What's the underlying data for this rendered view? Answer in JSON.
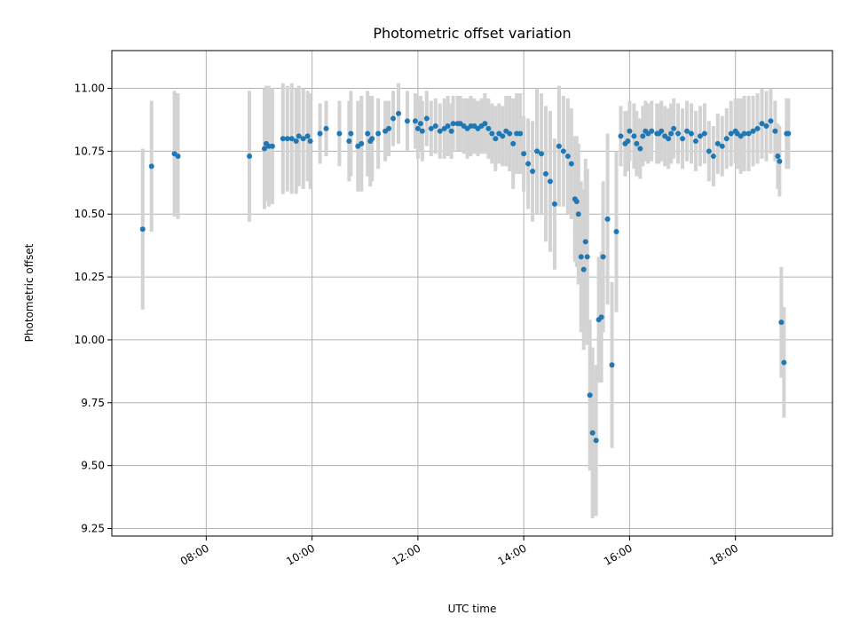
{
  "chart_data": {
    "type": "scatter",
    "title": "Photometric offset variation",
    "xlabel": "UTC time",
    "ylabel": "Photometric offset",
    "xlim": [
      "06:13",
      "19:50"
    ],
    "ylim": [
      9.22,
      11.15
    ],
    "x_ticks": [
      "08:00",
      "10:00",
      "12:00",
      "14:00",
      "16:00",
      "18:00"
    ],
    "y_ticks": [
      "9.25",
      "9.50",
      "9.75",
      "10.00",
      "10.25",
      "10.50",
      "10.75",
      "11.00"
    ],
    "grid": true,
    "colors": {
      "points": "#1f77b4",
      "errorbars": "#d3d3d3",
      "grid": "#b0b0b0"
    },
    "series": [
      {
        "x": [
          "06:48",
          "06:58",
          "07:24",
          "07:28",
          "08:49",
          "09:06",
          "09:08",
          "09:11",
          "09:15",
          "09:27",
          "09:32",
          "09:37",
          "09:42",
          "09:45",
          "09:50",
          "09:55",
          "09:58",
          "10:09",
          "10:16",
          "10:31",
          "10:42",
          "10:44",
          "10:52",
          "10:56",
          "11:03",
          "11:06",
          "11:08",
          "11:15",
          "11:23",
          "11:27",
          "11:32",
          "11:38",
          "11:48",
          "11:57",
          "12:00",
          "12:03",
          "12:05",
          "12:10",
          "12:15",
          "12:20",
          "12:25",
          "12:30",
          "12:34",
          "12:38",
          "12:40",
          "12:45",
          "12:48",
          "12:52",
          "12:56",
          "13:00",
          "13:04",
          "13:08",
          "13:12",
          "13:16",
          "13:20",
          "13:24",
          "13:28",
          "13:32",
          "13:36",
          "13:40",
          "13:44",
          "13:48",
          "13:52",
          "13:56",
          "14:00",
          "14:05",
          "14:10",
          "14:15",
          "14:20",
          "14:25",
          "14:30",
          "14:35",
          "14:40",
          "14:45",
          "14:50",
          "14:54",
          "14:58",
          "15:00",
          "15:02",
          "15:05",
          "15:08",
          "15:10",
          "15:12",
          "15:15",
          "15:18",
          "15:22",
          "15:25",
          "15:28",
          "15:30",
          "15:35",
          "15:40",
          "15:45",
          "15:50",
          "15:55",
          "15:58",
          "16:00",
          "16:05",
          "16:08",
          "16:12",
          "16:15",
          "16:18",
          "16:21",
          "16:25",
          "16:31",
          "16:33",
          "16:36",
          "16:40",
          "16:44",
          "16:47",
          "16:50",
          "16:55",
          "17:00",
          "17:05",
          "17:10",
          "17:15",
          "17:20",
          "17:25",
          "17:30",
          "17:35",
          "17:40",
          "17:45",
          "17:50",
          "17:55",
          "18:00",
          "18:02",
          "18:06",
          "18:10",
          "18:15",
          "18:20",
          "18:25",
          "18:30",
          "18:35",
          "18:40",
          "18:45",
          "18:48",
          "18:50",
          "18:52",
          "18:55",
          "18:58",
          "19:00"
        ],
        "y": [
          10.44,
          10.69,
          10.74,
          10.73,
          10.73,
          10.76,
          10.78,
          10.77,
          10.77,
          10.8,
          10.8,
          10.8,
          10.79,
          10.81,
          10.8,
          10.81,
          10.79,
          10.82,
          10.84,
          10.82,
          10.79,
          10.82,
          10.77,
          10.78,
          10.82,
          10.79,
          10.8,
          10.82,
          10.83,
          10.84,
          10.88,
          10.9,
          10.87,
          10.87,
          10.84,
          10.86,
          10.83,
          10.88,
          10.84,
          10.85,
          10.83,
          10.84,
          10.85,
          10.83,
          10.86,
          10.86,
          10.86,
          10.85,
          10.84,
          10.85,
          10.85,
          10.84,
          10.85,
          10.86,
          10.84,
          10.82,
          10.8,
          10.82,
          10.81,
          10.83,
          10.82,
          10.78,
          10.82,
          10.82,
          10.74,
          10.7,
          10.67,
          10.75,
          10.74,
          10.66,
          10.63,
          10.54,
          10.77,
          10.75,
          10.73,
          10.7,
          10.56,
          10.55,
          10.5,
          10.33,
          10.28,
          10.39,
          10.33,
          9.78,
          9.63,
          9.6,
          10.08,
          10.09,
          10.33,
          10.48,
          9.9,
          10.43,
          10.81,
          10.78,
          10.79,
          10.83,
          10.81,
          10.78,
          10.76,
          10.81,
          10.83,
          10.82,
          10.83,
          10.82,
          10.82,
          10.83,
          10.81,
          10.8,
          10.82,
          10.84,
          10.82,
          10.8,
          10.83,
          10.82,
          10.79,
          10.81,
          10.82,
          10.75,
          10.73,
          10.78,
          10.77,
          10.8,
          10.82,
          10.83,
          10.82,
          10.81,
          10.82,
          10.82,
          10.83,
          10.84,
          10.86,
          10.85,
          10.87,
          10.83,
          10.73,
          10.71,
          10.07,
          9.91,
          10.82,
          10.82
        ],
        "yerr": [
          0.32,
          0.26,
          0.25,
          0.25,
          0.26,
          0.24,
          0.23,
          0.24,
          0.23,
          0.22,
          0.21,
          0.22,
          0.21,
          0.2,
          0.2,
          0.18,
          0.19,
          0.12,
          0.11,
          0.13,
          0.16,
          0.17,
          0.18,
          0.19,
          0.17,
          0.18,
          0.17,
          0.14,
          0.12,
          0.11,
          0.11,
          0.12,
          0.12,
          0.11,
          0.12,
          0.11,
          0.12,
          0.11,
          0.11,
          0.11,
          0.11,
          0.12,
          0.12,
          0.11,
          0.11,
          0.11,
          0.11,
          0.11,
          0.12,
          0.12,
          0.11,
          0.11,
          0.11,
          0.12,
          0.12,
          0.12,
          0.13,
          0.12,
          0.12,
          0.14,
          0.15,
          0.18,
          0.16,
          0.16,
          0.15,
          0.18,
          0.2,
          0.25,
          0.24,
          0.27,
          0.28,
          0.26,
          0.24,
          0.22,
          0.23,
          0.22,
          0.25,
          0.26,
          0.28,
          0.3,
          0.32,
          0.33,
          0.35,
          0.3,
          0.34,
          0.3,
          0.25,
          0.26,
          0.3,
          0.34,
          0.33,
          0.32,
          0.12,
          0.13,
          0.12,
          0.12,
          0.13,
          0.13,
          0.12,
          0.12,
          0.12,
          0.12,
          0.12,
          0.12,
          0.12,
          0.12,
          0.12,
          0.12,
          0.12,
          0.12,
          0.12,
          0.12,
          0.12,
          0.12,
          0.12,
          0.12,
          0.12,
          0.12,
          0.12,
          0.12,
          0.12,
          0.12,
          0.13,
          0.13,
          0.14,
          0.15,
          0.15,
          0.15,
          0.14,
          0.14,
          0.14,
          0.14,
          0.13,
          0.12,
          0.13,
          0.14,
          0.22,
          0.22,
          0.14,
          0.14
        ]
      }
    ]
  }
}
